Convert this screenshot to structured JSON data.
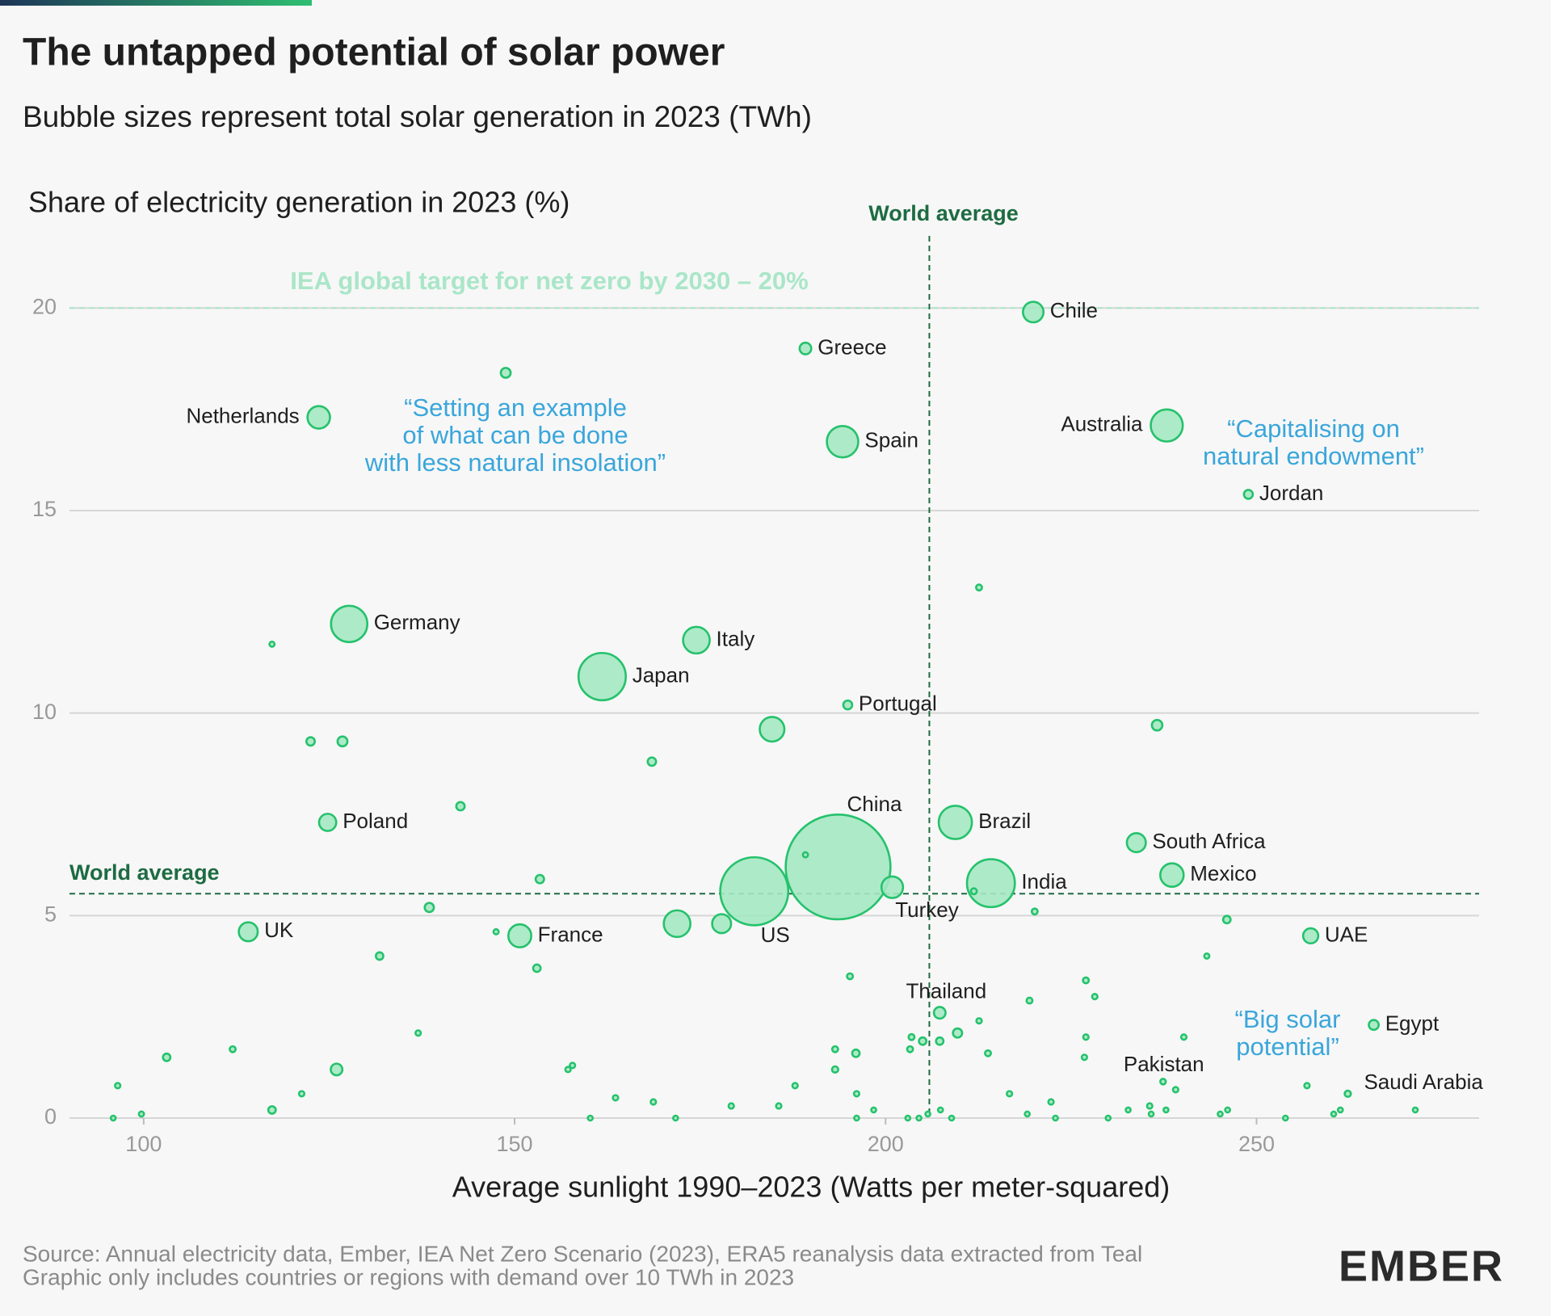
{
  "chart_data": {
    "type": "bubble",
    "title": "The untapped potential of solar power",
    "subtitle": "Bubble sizes represent total solar generation in 2023 (TWh)",
    "y_label": "Share of electricity generation in 2023 (%)",
    "x_label": "Average sunlight 1990–2023 (Watts per meter-squared)",
    "color": "#25c26c",
    "fill": "#a4e8c2",
    "grid": true,
    "xlim": [
      90,
      280
    ],
    "xticks": [
      100,
      150,
      200,
      250
    ],
    "ylim": [
      0,
      22
    ],
    "yticks": [
      0,
      5,
      10,
      15,
      20
    ],
    "labels": [
      "Chile",
      "Greece",
      "Netherlands",
      "Spain",
      "Australia",
      "Jordan",
      "Germany",
      "Italy",
      "Japan",
      "Portugal",
      "Poland",
      "China",
      "Brazil",
      "South Africa",
      "Mexico",
      "India",
      "Turkey",
      "US",
      "UK",
      "France",
      "UAE",
      "Thailand",
      "Egypt",
      "Pakistan",
      "Saudi Arabia",
      null,
      null,
      null,
      null,
      null,
      null,
      null,
      null,
      null,
      null,
      null,
      null,
      null,
      null,
      null,
      null,
      null,
      null,
      null,
      null,
      null,
      null,
      null,
      null,
      null,
      null,
      null,
      null,
      null,
      null,
      null,
      null,
      null,
      null,
      null,
      null,
      null,
      null,
      null,
      null,
      null,
      null,
      null,
      null,
      null,
      null,
      null,
      null,
      null,
      null,
      null,
      null,
      null,
      null,
      null,
      null,
      null,
      null,
      null,
      null,
      null,
      null,
      null,
      null,
      null,
      null,
      null,
      null
    ],
    "x": [
      219.9,
      189.2,
      123.6,
      194.2,
      237.9,
      248.9,
      127.7,
      174.5,
      161.8,
      194.9,
      124.8,
      193.6,
      209.4,
      233.8,
      238.6,
      214.2,
      200.9,
      182.3,
      114.1,
      150.7,
      257.3,
      207.3,
      265.8,
      237.4,
      262.3,
      148.8,
      212.6,
      117.3,
      122.5,
      126.8,
      184.7,
      236.6,
      168.5,
      142.7,
      153.4,
      138.5,
      131.8,
      153.0,
      147.5,
      171.9,
      177.9,
      189.2,
      220.1,
      246.0,
      243.3,
      211.9,
      103.1,
      112.0,
      96.5,
      99.7,
      95.9,
      117.3,
      121.3,
      126.0,
      137.0,
      157.8,
      157.2,
      160.2,
      163.6,
      168.7,
      171.7,
      179.2,
      185.6,
      187.8,
      195.2,
      193.2,
      193.2,
      196.0,
      196.1,
      196.1,
      198.4,
      203.3,
      203.5,
      205.0,
      207.3,
      209.7,
      212.6,
      213.8,
      216.7,
      219.4,
      219.1,
      222.3,
      222.9,
      227.0,
      228.2,
      227.0,
      226.8,
      230.0,
      232.7,
      235.6,
      235.8,
      237.8,
      240.2,
      239.1,
      246.1,
      245.1,
      253.9,
      256.8,
      261.3,
      260.4,
      271.4,
      203.0,
      204.5,
      205.7,
      207.4,
      208.9
    ],
    "values": [
      19.9,
      19.0,
      17.3,
      16.7,
      17.1,
      15.4,
      12.2,
      11.8,
      10.9,
      10.2,
      7.3,
      6.2,
      7.3,
      6.8,
      6.0,
      5.8,
      5.7,
      5.6,
      4.6,
      4.5,
      4.5,
      2.6,
      2.3,
      0.9,
      0.6,
      18.4,
      13.1,
      11.7,
      9.3,
      9.3,
      9.6,
      9.7,
      8.8,
      7.7,
      5.9,
      5.2,
      4.0,
      3.7,
      4.6,
      4.8,
      4.8,
      6.5,
      5.1,
      4.9,
      4.0,
      5.6,
      1.5,
      1.7,
      0.8,
      0.1,
      0,
      0.2,
      0.6,
      1.2,
      2.1,
      1.3,
      1.2,
      0,
      0.5,
      0.4,
      0,
      0.3,
      0.3,
      0.8,
      3.5,
      1.7,
      1.2,
      1.6,
      0.6,
      0,
      0.2,
      1.7,
      2.0,
      1.9,
      1.9,
      2.1,
      2.4,
      1.6,
      0.6,
      2.9,
      0.1,
      0.4,
      0,
      3.4,
      3.0,
      2.0,
      1.5,
      0,
      0.2,
      0.3,
      0.1,
      0.2,
      2.0,
      0.7,
      0.2,
      0.1,
      0,
      0.8,
      0.2,
      0.1,
      0.2,
      0,
      0,
      0.1,
      0.2,
      0
    ],
    "sizes": [
      17,
      4,
      21,
      45,
      47,
      1.8,
      62,
      31,
      110,
      1.8,
      11,
      584,
      51,
      14,
      23,
      113,
      19,
      238,
      14,
      22,
      8,
      4,
      2.5,
      0.3,
      0.5,
      2.5,
      0.4,
      0.2,
      1.5,
      2.5,
      26,
      3,
      1.5,
      1.5,
      1.5,
      2,
      1,
      1,
      0.2,
      31,
      14,
      0.2,
      0.4,
      1,
      0.2,
      0.4,
      1,
      0.4,
      0.25,
      0.2,
      0.15,
      1,
      0.25,
      4,
      0.25,
      0.25,
      0.25,
      0.15,
      0.25,
      0.25,
      0.15,
      0.25,
      0.25,
      0.25,
      0.4,
      0.4,
      0.5,
      1,
      0.25,
      0.15,
      0.15,
      0.4,
      0.4,
      1,
      1,
      2,
      0.25,
      0.4,
      0.25,
      0.4,
      0.15,
      0.25,
      0.15,
      0.4,
      0.25,
      0.25,
      0.25,
      0.15,
      0.15,
      0.25,
      0.15,
      0.15,
      0.25,
      0.25,
      0.15,
      0.15,
      0.15,
      0.25,
      0.15,
      0.15,
      0.15,
      0.15,
      0.15,
      0.15,
      0.15,
      0.15
    ],
    "reference_lines": [
      {
        "axis": "y",
        "value": 20,
        "label": "IEA global target for net zero by 2030 – 20%",
        "color": "#a9e6c8"
      },
      {
        "axis": "x",
        "value": 205.9,
        "label": "World average",
        "color": "#1e6b42"
      },
      {
        "axis": "y",
        "value": 5.54,
        "label": "World average",
        "color": "#1e6b42"
      }
    ],
    "annotations": [
      {
        "lines": [
          "“Setting an example",
          "of what can be done",
          "with less natural insolation”"
        ],
        "color": "#3aa6db"
      },
      {
        "lines": [
          "“Capitalising on",
          "natural endowment”"
        ],
        "color": "#3aa6db"
      },
      {
        "lines": [
          "“Big solar",
          "potential”"
        ],
        "color": "#3aa6db"
      }
    ],
    "source": [
      "Source: Annual electricity data, Ember, IEA Net Zero Scenario (2023), ERA5 reanalysis data extracted from Teal",
      "Graphic only includes countries or regions with demand over 10 TWh in 2023"
    ],
    "logo": "EMBER"
  }
}
